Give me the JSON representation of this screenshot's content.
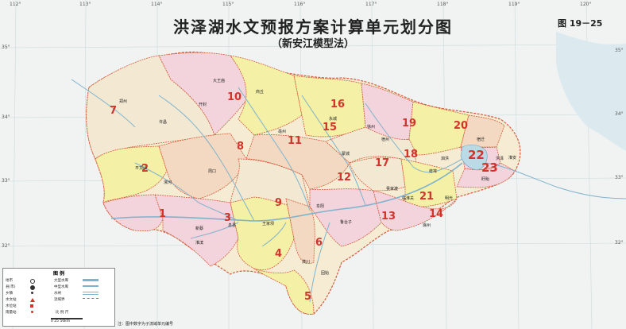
{
  "map": {
    "title": "洪泽湖水文预报方案计算单元划分图",
    "subtitle": "（新安江模型法）",
    "figure_number": "图 19－25",
    "note": "注：图中数字为子流域单元编号",
    "longitudes": [
      "112°",
      "113°",
      "114°",
      "115°",
      "116°",
      "117°",
      "118°",
      "119°",
      "120°"
    ],
    "latitudes": [
      "35°",
      "34°",
      "33°",
      "32°"
    ],
    "units": [
      "1",
      "2",
      "3",
      "4",
      "5",
      "6",
      "7",
      "8",
      "9",
      "10",
      "11",
      "12",
      "13",
      "14",
      "15",
      "16",
      "17",
      "18",
      "19",
      "20",
      "21",
      "22",
      "23"
    ],
    "places": [
      "大王庙",
      "商丘",
      "阜阳",
      "王家坝",
      "蚌埠",
      "洪泽",
      "盱眙",
      "淮安",
      "宿迁",
      "永城",
      "亳州",
      "蒙城",
      "新蔡",
      "息县",
      "潢川",
      "固始",
      "平顶山",
      "漯河",
      "周口",
      "许昌",
      "开封",
      "郑州",
      "明光",
      "滁州",
      "淮滨",
      "鲁台子",
      "吴家渡",
      "临淮关",
      "泗洪",
      "宿州",
      "徐州"
    ],
    "colors": {
      "water": "#eef5f8",
      "boundary": "#d55a3a",
      "label": "#d2332b",
      "river": "#7fb3cc",
      "region_pink": "#f3d3dc",
      "region_yellow": "#f4f0a6",
      "region_cream": "#f6ecd4",
      "region_peach": "#f3d9c1",
      "region_beige": "#f1e6d0"
    }
  },
  "legend": {
    "title": "图  例",
    "items": [
      "地市",
      "县(市)",
      "乡镇",
      "水文站",
      "水位站",
      "雨量站",
      "大型水库",
      "中型水库",
      "水闸",
      "流域界"
    ],
    "scale_label": "比 例 尺",
    "scale_values": "0   25   50km"
  }
}
